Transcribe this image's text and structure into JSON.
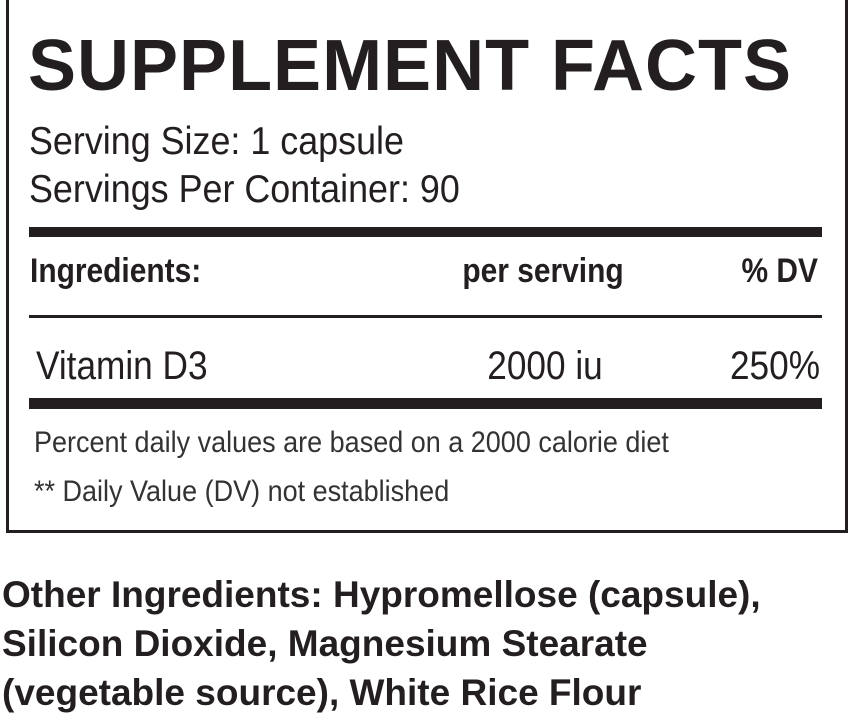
{
  "label": {
    "title": "SUPPLEMENT FACTS",
    "serving_size": "Serving Size: 1 capsule",
    "servings_per_container": "Servings Per Container: 90",
    "columns": [
      "Ingredients:",
      "per serving",
      "% DV"
    ],
    "rows": [
      {
        "ingredient": "Vitamin D3",
        "per_serving": "2000 iu",
        "dv": "250%"
      }
    ],
    "footnotes": [
      "Percent daily values are based on a 2000 calorie diet",
      "** Daily Value (DV) not established"
    ]
  },
  "other_ingredients": [
    "Other Ingredients: Hypromellose (capsule),",
    "Silicon Dioxide, Magnesium Stearate",
    "(vegetable source), White Rice Flour"
  ]
}
